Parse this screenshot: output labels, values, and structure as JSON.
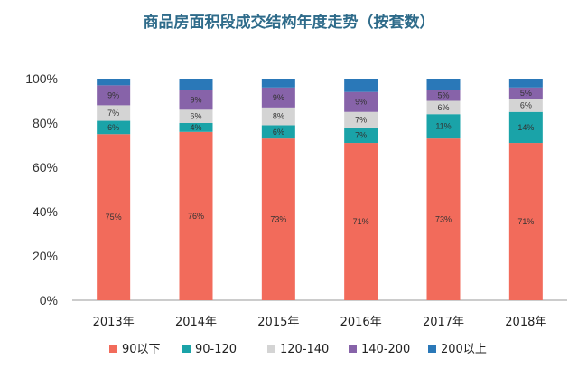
{
  "colors": {
    "title": "#2e6b8a",
    "axis": "#999999"
  },
  "chart_data": {
    "type": "bar",
    "stacked": true,
    "title": "商品房面积段成交结构年度走势（按套数）",
    "xlabel": "",
    "ylabel": "",
    "ylim": [
      0,
      100
    ],
    "yticks": [
      "0%",
      "20%",
      "40%",
      "60%",
      "80%",
      "100%"
    ],
    "categories": [
      "2013年",
      "2014年",
      "2015年",
      "2016年",
      "2017年",
      "2018年"
    ],
    "legend_position": "bottom",
    "grid": false,
    "series": [
      {
        "name": "90以下",
        "color": "#f26b5b",
        "values": [
          75,
          76,
          73,
          71,
          73,
          71
        ],
        "labels": [
          "75%",
          "76%",
          "73%",
          "71%",
          "73%",
          "71%"
        ]
      },
      {
        "name": "90-120",
        "color": "#1aa3a8",
        "values": [
          6,
          4,
          6,
          7,
          11,
          14
        ],
        "labels": [
          "6%",
          "4%",
          "6%",
          "7%",
          "11%",
          "14%"
        ]
      },
      {
        "name": "120-140",
        "color": "#d4d4d4",
        "values": [
          7,
          6,
          8,
          7,
          6,
          6
        ],
        "labels": [
          "7%",
          "6%",
          "8%",
          "7%",
          "6%",
          "6%"
        ]
      },
      {
        "name": "140-200",
        "color": "#8763a9",
        "values": [
          9,
          9,
          9,
          9,
          5,
          5
        ],
        "labels": [
          "9%",
          "9%",
          "9%",
          "9%",
          "5%",
          "5%"
        ]
      },
      {
        "name": "200以上",
        "color": "#2a78b8",
        "values": [
          3,
          5,
          4,
          6,
          5,
          4
        ],
        "labels": [
          "",
          "",
          "",
          "",
          "",
          ""
        ]
      }
    ]
  }
}
